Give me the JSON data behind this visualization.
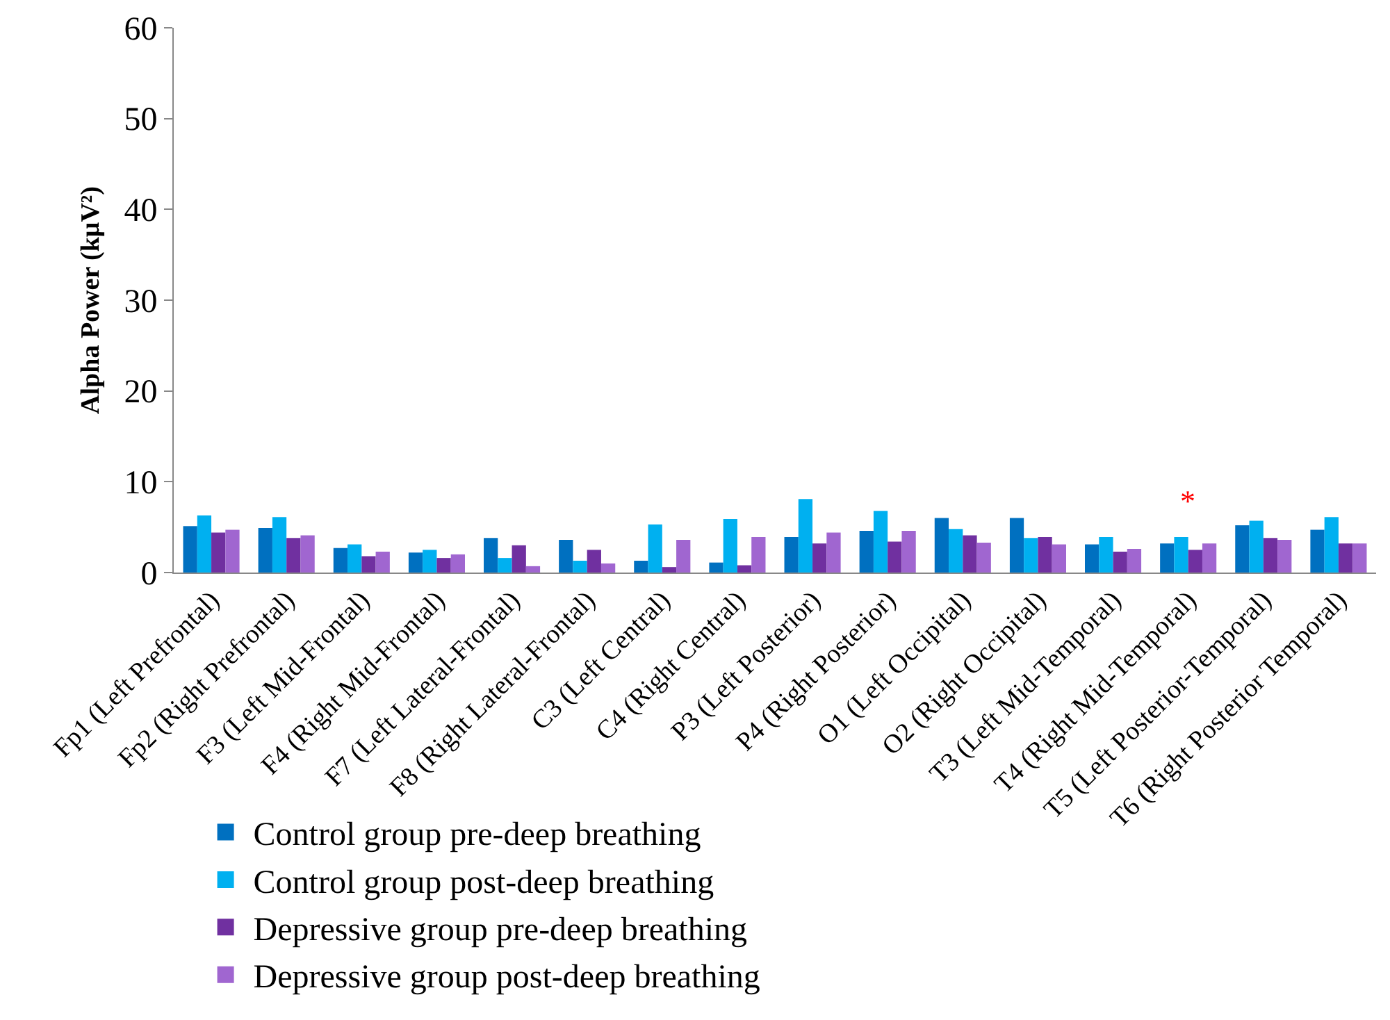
{
  "chart_data": {
    "type": "bar",
    "ylabel": "Alpha Power (kμV²)",
    "categories": [
      "Fp1 (Left Prefrontal)",
      "Fp2 (Right Prefrontal)",
      "F3 (Left Mid-Frontal)",
      "F4 (Right Mid-Frontal)",
      "F7 (Left Lateral-Frontal)",
      "F8 (Right Lateral-Frontal)",
      "C3 (Left Central)",
      "C4 (Right Central)",
      "P3 (Left Posterior)",
      "P4 (Right Posterior)",
      "O1 (Left Occipital)",
      "O2 (Right Occipital)",
      "T3 (Left Mid-Temporal)",
      "T4 (Right Mid-Temporal)",
      "T5 (Left Posterior-Temporal)",
      "T6 (Right Posterior Temporal)"
    ],
    "series": [
      {
        "name": "Control group pre-deep breathing",
        "color": "#0070c0",
        "values": [
          5.1,
          4.9,
          2.7,
          2.2,
          3.8,
          3.6,
          1.3,
          1.1,
          3.9,
          4.6,
          6.0,
          6.0,
          3.1,
          3.2,
          5.2,
          4.7
        ]
      },
      {
        "name": "Control group post-deep breathing",
        "color": "#00b0f0",
        "values": [
          6.3,
          6.1,
          3.1,
          2.5,
          1.6,
          1.3,
          5.3,
          5.9,
          8.1,
          6.8,
          4.8,
          3.8,
          3.9,
          3.9,
          5.7,
          6.1
        ]
      },
      {
        "name": "Depressive group pre-deep breathing",
        "color": "#7030a0",
        "values": [
          4.4,
          3.8,
          1.8,
          1.6,
          3.0,
          2.5,
          0.6,
          0.8,
          3.2,
          3.4,
          4.1,
          3.9,
          2.3,
          2.5,
          3.8,
          3.2
        ]
      },
      {
        "name": "Depressive group post-deep breathing",
        "color": "#a066d0",
        "values": [
          4.7,
          4.1,
          2.3,
          2.0,
          0.7,
          1.0,
          3.6,
          3.9,
          4.4,
          4.6,
          3.3,
          3.1,
          2.6,
          3.2,
          3.6,
          3.2
        ]
      }
    ],
    "ylim": [
      0,
      60
    ],
    "yticks": [
      0,
      10,
      20,
      30,
      40,
      50,
      60
    ],
    "grid": false,
    "legend": "bottom",
    "annotations": [
      {
        "text": "*",
        "x": "T4 (Right Mid-Temporal)",
        "y": 3.9
      }
    ]
  }
}
